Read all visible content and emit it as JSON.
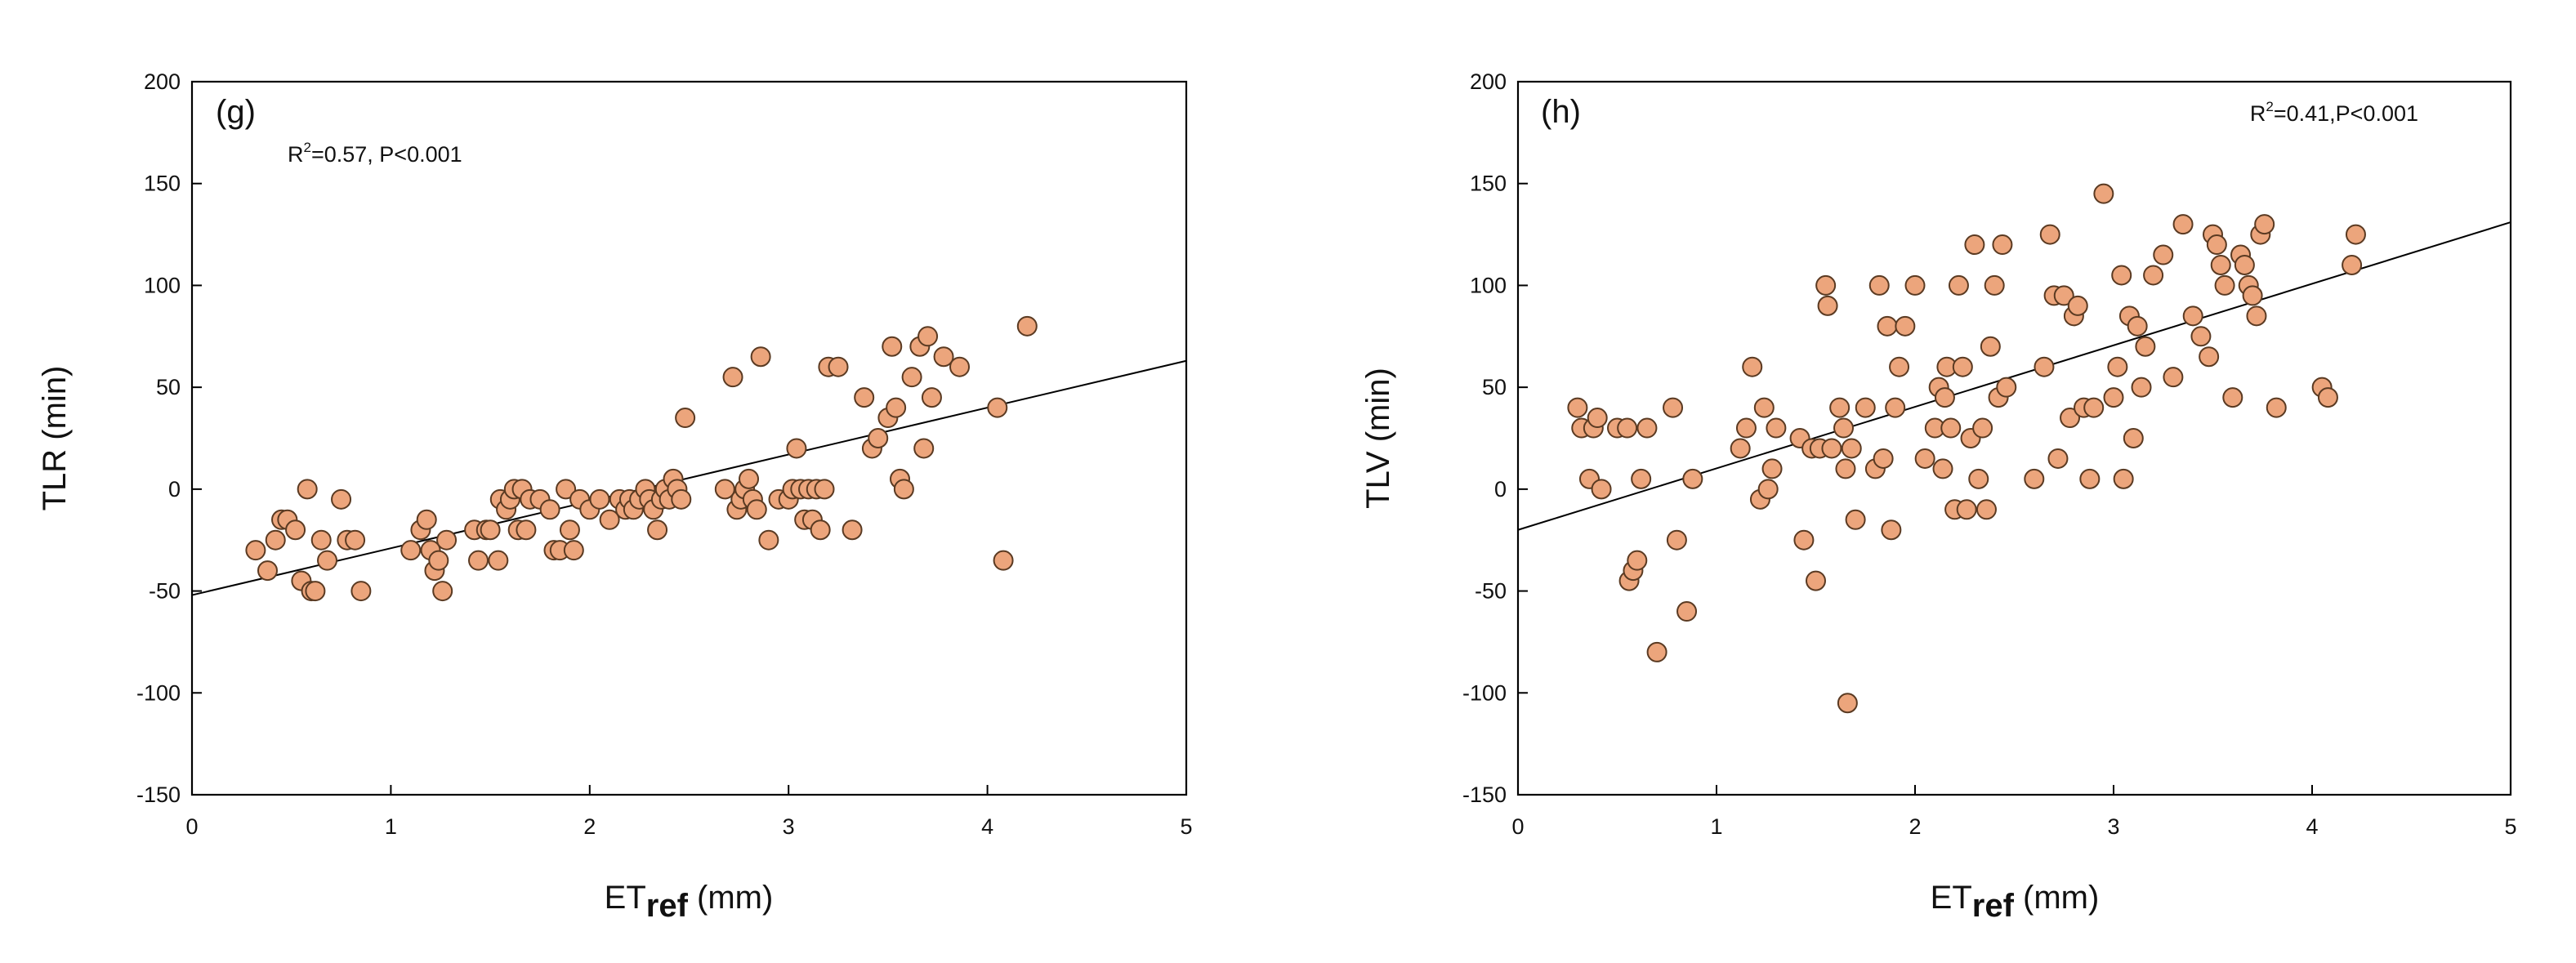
{
  "colors": {
    "marker_fill": "#ECA57C",
    "marker_stroke": "#5a3a22",
    "axis": "#000000",
    "fit_line": "#000000"
  },
  "chart_data": [
    {
      "type": "scatter",
      "panel_label": "(g)",
      "annotation": {
        "r_prefix": "R",
        "r_sup": "2",
        "r_rest": "=0.57, P<0.001"
      },
      "xlabel": {
        "main": "ET",
        "sub": "ref",
        "unit": " (mm)"
      },
      "ylabel": "TLR (min)",
      "xlim": [
        0,
        5
      ],
      "ylim": [
        -150,
        200
      ],
      "xticks": [
        0,
        1,
        2,
        3,
        4,
        5
      ],
      "yticks": [
        -150,
        -100,
        -50,
        0,
        50,
        100,
        150,
        200
      ],
      "fit": {
        "x": [
          0,
          5
        ],
        "y": [
          -52,
          63
        ]
      },
      "points": [
        [
          0.32,
          -30
        ],
        [
          0.38,
          -40
        ],
        [
          0.42,
          -25
        ],
        [
          0.45,
          -15
        ],
        [
          0.48,
          -15
        ],
        [
          0.52,
          -20
        ],
        [
          0.55,
          -45
        ],
        [
          0.58,
          0
        ],
        [
          0.6,
          -50
        ],
        [
          0.62,
          -50
        ],
        [
          0.65,
          -25
        ],
        [
          0.68,
          -35
        ],
        [
          0.75,
          -5
        ],
        [
          0.78,
          -25
        ],
        [
          0.82,
          -25
        ],
        [
          0.85,
          -50
        ],
        [
          1.1,
          -30
        ],
        [
          1.15,
          -20
        ],
        [
          1.18,
          -15
        ],
        [
          1.2,
          -30
        ],
        [
          1.22,
          -40
        ],
        [
          1.24,
          -35
        ],
        [
          1.26,
          -50
        ],
        [
          1.28,
          -25
        ],
        [
          1.42,
          -20
        ],
        [
          1.44,
          -35
        ],
        [
          1.48,
          -20
        ],
        [
          1.5,
          -20
        ],
        [
          1.54,
          -35
        ],
        [
          1.55,
          -5
        ],
        [
          1.58,
          -10
        ],
        [
          1.6,
          -5
        ],
        [
          1.62,
          0
        ],
        [
          1.64,
          -20
        ],
        [
          1.66,
          0
        ],
        [
          1.68,
          -20
        ],
        [
          1.7,
          -5
        ],
        [
          1.75,
          -5
        ],
        [
          1.8,
          -10
        ],
        [
          1.82,
          -30
        ],
        [
          1.85,
          -30
        ],
        [
          1.88,
          0
        ],
        [
          1.9,
          -20
        ],
        [
          1.92,
          -30
        ],
        [
          1.95,
          -5
        ],
        [
          2.0,
          -10
        ],
        [
          2.05,
          -5
        ],
        [
          2.1,
          -15
        ],
        [
          2.15,
          -5
        ],
        [
          2.18,
          -10
        ],
        [
          2.2,
          -5
        ],
        [
          2.22,
          -10
        ],
        [
          2.25,
          -5
        ],
        [
          2.28,
          0
        ],
        [
          2.3,
          -5
        ],
        [
          2.32,
          -10
        ],
        [
          2.34,
          -20
        ],
        [
          2.36,
          -5
        ],
        [
          2.38,
          0
        ],
        [
          2.4,
          -5
        ],
        [
          2.42,
          5
        ],
        [
          2.44,
          0
        ],
        [
          2.46,
          -5
        ],
        [
          2.48,
          35
        ],
        [
          2.68,
          0
        ],
        [
          2.72,
          55
        ],
        [
          2.74,
          -10
        ],
        [
          2.76,
          -5
        ],
        [
          2.78,
          0
        ],
        [
          2.8,
          5
        ],
        [
          2.82,
          -5
        ],
        [
          2.84,
          -10
        ],
        [
          2.86,
          65
        ],
        [
          2.9,
          -25
        ],
        [
          2.95,
          -5
        ],
        [
          3.0,
          -5
        ],
        [
          3.02,
          0
        ],
        [
          3.04,
          20
        ],
        [
          3.06,
          0
        ],
        [
          3.08,
          -15
        ],
        [
          3.1,
          0
        ],
        [
          3.12,
          -15
        ],
        [
          3.14,
          0
        ],
        [
          3.16,
          -20
        ],
        [
          3.18,
          0
        ],
        [
          3.2,
          60
        ],
        [
          3.25,
          60
        ],
        [
          3.32,
          -20
        ],
        [
          3.38,
          45
        ],
        [
          3.42,
          20
        ],
        [
          3.45,
          25
        ],
        [
          3.5,
          35
        ],
        [
          3.52,
          70
        ],
        [
          3.54,
          40
        ],
        [
          3.56,
          5
        ],
        [
          3.58,
          0
        ],
        [
          3.62,
          55
        ],
        [
          3.66,
          70
        ],
        [
          3.68,
          20
        ],
        [
          3.7,
          75
        ],
        [
          3.72,
          45
        ],
        [
          3.78,
          65
        ],
        [
          3.86,
          60
        ],
        [
          4.05,
          40
        ],
        [
          4.08,
          -35
        ],
        [
          4.2,
          80
        ]
      ]
    },
    {
      "type": "scatter",
      "panel_label": "(h)",
      "annotation": {
        "r_prefix": "R",
        "r_sup": "2",
        "r_rest": "=0.41,P<0.001"
      },
      "xlabel": {
        "main": "ET",
        "sub": "ref",
        "unit": " (mm)"
      },
      "ylabel": "TLV (min)",
      "xlim": [
        0,
        5
      ],
      "ylim": [
        -150,
        200
      ],
      "xticks": [
        0,
        1,
        2,
        3,
        4,
        5
      ],
      "yticks": [
        -150,
        -100,
        -50,
        0,
        50,
        100,
        150,
        200
      ],
      "fit": {
        "x": [
          0,
          5
        ],
        "y": [
          -20,
          131
        ]
      },
      "points": [
        [
          0.3,
          40
        ],
        [
          0.32,
          30
        ],
        [
          0.36,
          5
        ],
        [
          0.38,
          30
        ],
        [
          0.4,
          35
        ],
        [
          0.42,
          0
        ],
        [
          0.5,
          30
        ],
        [
          0.55,
          30
        ],
        [
          0.56,
          -45
        ],
        [
          0.58,
          -40
        ],
        [
          0.6,
          -35
        ],
        [
          0.62,
          5
        ],
        [
          0.65,
          30
        ],
        [
          0.7,
          -80
        ],
        [
          0.78,
          40
        ],
        [
          0.8,
          -25
        ],
        [
          0.85,
          -60
        ],
        [
          0.88,
          5
        ],
        [
          1.12,
          20
        ],
        [
          1.15,
          30
        ],
        [
          1.18,
          60
        ],
        [
          1.22,
          -5
        ],
        [
          1.24,
          40
        ],
        [
          1.26,
          0
        ],
        [
          1.28,
          10
        ],
        [
          1.3,
          30
        ],
        [
          1.42,
          25
        ],
        [
          1.44,
          -25
        ],
        [
          1.48,
          20
        ],
        [
          1.5,
          -45
        ],
        [
          1.52,
          20
        ],
        [
          1.55,
          100
        ],
        [
          1.56,
          90
        ],
        [
          1.58,
          20
        ],
        [
          1.62,
          40
        ],
        [
          1.64,
          30
        ],
        [
          1.65,
          10
        ],
        [
          1.66,
          -105
        ],
        [
          1.68,
          20
        ],
        [
          1.7,
          -15
        ],
        [
          1.75,
          40
        ],
        [
          1.8,
          10
        ],
        [
          1.82,
          100
        ],
        [
          1.84,
          15
        ],
        [
          1.86,
          80
        ],
        [
          1.88,
          -20
        ],
        [
          1.9,
          40
        ],
        [
          1.92,
          60
        ],
        [
          1.95,
          80
        ],
        [
          2.0,
          100
        ],
        [
          2.05,
          15
        ],
        [
          2.1,
          30
        ],
        [
          2.12,
          50
        ],
        [
          2.14,
          10
        ],
        [
          2.15,
          45
        ],
        [
          2.16,
          60
        ],
        [
          2.18,
          30
        ],
        [
          2.2,
          -10
        ],
        [
          2.22,
          100
        ],
        [
          2.24,
          60
        ],
        [
          2.26,
          -10
        ],
        [
          2.28,
          25
        ],
        [
          2.3,
          120
        ],
        [
          2.32,
          5
        ],
        [
          2.34,
          30
        ],
        [
          2.36,
          -10
        ],
        [
          2.38,
          70
        ],
        [
          2.4,
          100
        ],
        [
          2.42,
          45
        ],
        [
          2.44,
          120
        ],
        [
          2.46,
          50
        ],
        [
          2.6,
          5
        ],
        [
          2.65,
          60
        ],
        [
          2.68,
          125
        ],
        [
          2.7,
          95
        ],
        [
          2.72,
          15
        ],
        [
          2.75,
          95
        ],
        [
          2.78,
          35
        ],
        [
          2.8,
          85
        ],
        [
          2.82,
          90
        ],
        [
          2.85,
          40
        ],
        [
          2.88,
          5
        ],
        [
          2.9,
          40
        ],
        [
          2.95,
          145
        ],
        [
          3.0,
          45
        ],
        [
          3.02,
          60
        ],
        [
          3.04,
          105
        ],
        [
          3.05,
          5
        ],
        [
          3.08,
          85
        ],
        [
          3.1,
          25
        ],
        [
          3.12,
          80
        ],
        [
          3.14,
          50
        ],
        [
          3.16,
          70
        ],
        [
          3.2,
          105
        ],
        [
          3.25,
          115
        ],
        [
          3.3,
          55
        ],
        [
          3.35,
          130
        ],
        [
          3.4,
          85
        ],
        [
          3.44,
          75
        ],
        [
          3.48,
          65
        ],
        [
          3.5,
          125
        ],
        [
          3.52,
          120
        ],
        [
          3.54,
          110
        ],
        [
          3.56,
          100
        ],
        [
          3.6,
          45
        ],
        [
          3.64,
          115
        ],
        [
          3.66,
          110
        ],
        [
          3.68,
          100
        ],
        [
          3.7,
          95
        ],
        [
          3.72,
          85
        ],
        [
          3.74,
          125
        ],
        [
          3.76,
          130
        ],
        [
          3.82,
          40
        ],
        [
          4.05,
          50
        ],
        [
          4.08,
          45
        ],
        [
          4.2,
          110
        ],
        [
          4.22,
          125
        ]
      ]
    }
  ]
}
